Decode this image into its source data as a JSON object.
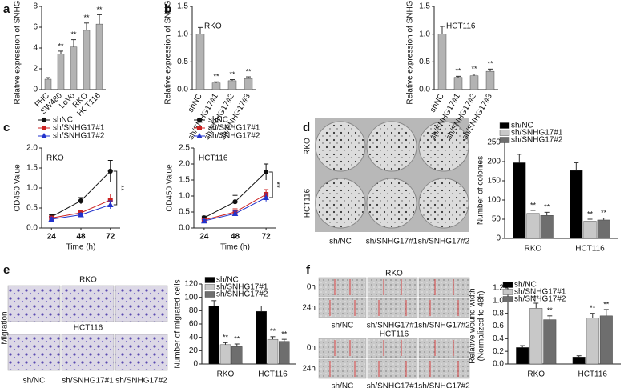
{
  "panel_labels": [
    "a",
    "b",
    "c",
    "d",
    "e",
    "f"
  ],
  "panels": {
    "d": {
      "rows": [
        "RKO",
        "HCT116"
      ],
      "columns": [
        "sh/NC",
        "sh/SNHG17#1",
        "sh/SNHG17#2"
      ]
    },
    "e": {
      "side_label": "Migration",
      "rows": [
        "RKO",
        "HCT116"
      ],
      "columns": [
        "sh/NC",
        "sh/SNHG17#1",
        "sh/SNHG17#2"
      ]
    },
    "f": {
      "groups": [
        "RKO",
        "HCT116"
      ],
      "rows": [
        "0h",
        "24h"
      ],
      "columns": [
        "sh/NC",
        "sh/SNHG17#1",
        "sh/SNHG17#2"
      ]
    }
  },
  "chart_data": [
    {
      "type": "bar",
      "ylabel": "Relative expression of SNHG17",
      "color": "#b3b3b3",
      "categories": [
        "FHC",
        "SW480",
        "LoVo",
        "RKO",
        "HCT116"
      ],
      "values": [
        1.0,
        3.4,
        4.1,
        5.7,
        6.3
      ],
      "errors": [
        0.15,
        0.3,
        0.7,
        0.7,
        0.9
      ],
      "significance": [
        null,
        "**",
        "**",
        "**",
        "**"
      ],
      "ylim": [
        0,
        8
      ],
      "yticks": [
        0,
        2,
        4,
        6,
        8
      ]
    },
    {
      "type": "bar",
      "title": "RKO",
      "ylabel": "Relative expression of SNHG17",
      "color": "#b3b3b3",
      "categories": [
        "shNC",
        "sh/SNHG17#1",
        "sh/SNHG17#2",
        "sh/SNHG17#3"
      ],
      "values": [
        1.0,
        0.12,
        0.16,
        0.2
      ],
      "errors": [
        0.12,
        0.02,
        0.02,
        0.03
      ],
      "significance": [
        null,
        "**",
        "**",
        "**"
      ],
      "ylim": [
        0,
        1.5
      ],
      "yticks": [
        {
          "value": 0,
          "label": "0.0"
        },
        0.5,
        {
          "value": 1,
          "label": "1.0"
        },
        1.5
      ]
    },
    {
      "type": "bar",
      "title": "HCT116",
      "ylabel": "Relative expression of SNHG17",
      "color": "#b3b3b3",
      "categories": [
        "shNC",
        "sh/SNHG17#1",
        "sh/SNHG17#2",
        "sh/SNHG17#3"
      ],
      "values": [
        1.0,
        0.22,
        0.25,
        0.33
      ],
      "errors": [
        0.14,
        0.02,
        0.03,
        0.04
      ],
      "significance": [
        null,
        "**",
        "**",
        "**"
      ],
      "ylim": [
        0,
        1.5
      ],
      "yticks": [
        {
          "value": 0,
          "label": "0.0"
        },
        0.5,
        {
          "value": 1,
          "label": "1.0"
        },
        1.5
      ]
    },
    {
      "type": "line",
      "title": "RKO",
      "ylabel": "OD450 Value",
      "xlabel": "Time (h)",
      "annotation": "**",
      "x": [
        24,
        48,
        72
      ],
      "xlim": [
        16,
        80
      ],
      "xticks": [
        24,
        48,
        72
      ],
      "ylim": [
        0,
        2
      ],
      "yticks": [
        {
          "value": 0,
          "label": "0.0"
        },
        0.5,
        {
          "value": 1,
          "label": "1.0"
        },
        1.5,
        {
          "value": 2,
          "label": "2.0"
        }
      ],
      "series": [
        {
          "name": "shNC",
          "color": "#111111",
          "marker": "circle",
          "values": [
            0.28,
            0.68,
            1.42
          ],
          "errors": [
            0.05,
            0.08,
            0.27
          ]
        },
        {
          "name": "sh/SNHG17#1",
          "color": "#cc2222",
          "marker": "square",
          "values": [
            0.25,
            0.38,
            0.7
          ],
          "errors": [
            0.04,
            0.05,
            0.15
          ]
        },
        {
          "name": "sh/SNHG17#2",
          "color": "#2233cc",
          "marker": "triangle",
          "values": [
            0.22,
            0.33,
            0.58
          ],
          "errors": [
            0.04,
            0.04,
            0.1
          ]
        }
      ]
    },
    {
      "type": "line",
      "title": "HCT116",
      "ylabel": "OD450 Value",
      "xlabel": "Time (h)",
      "annotation": "**",
      "x": [
        24,
        48,
        72
      ],
      "xlim": [
        16,
        80
      ],
      "xticks": [
        24,
        48,
        72
      ],
      "ylim": [
        0,
        2.5
      ],
      "yticks": [
        {
          "value": 0,
          "label": "0.0"
        },
        0.5,
        {
          "value": 1,
          "label": "1.0"
        },
        1.5,
        {
          "value": 2,
          "label": "2.0"
        },
        2.5
      ],
      "series": [
        {
          "name": "shNC",
          "color": "#111111",
          "marker": "circle",
          "values": [
            0.32,
            0.82,
            1.75
          ],
          "errors": [
            0.05,
            0.2,
            0.25
          ]
        },
        {
          "name": "sh/SNHG17#1",
          "color": "#cc2222",
          "marker": "square",
          "values": [
            0.25,
            0.5,
            1.05
          ],
          "errors": [
            0.04,
            0.1,
            0.15
          ]
        },
        {
          "name": "sh/SNHG17#2",
          "color": "#2233cc",
          "marker": "triangle",
          "values": [
            0.22,
            0.45,
            0.95
          ],
          "errors": [
            0.04,
            0.08,
            0.12
          ]
        }
      ]
    },
    {
      "type": "bar",
      "ylabel": "Number of colonies",
      "categories": [
        "RKO",
        "HCT116"
      ],
      "ylim": [
        0,
        250
      ],
      "yticks": [
        0,
        50,
        100,
        150,
        200,
        250
      ],
      "series": [
        {
          "name": "sh/NC",
          "color": "#000000",
          "values": [
            197,
            177
          ],
          "errors": [
            22,
            20
          ],
          "significance": [
            null,
            null
          ]
        },
        {
          "name": "sh/SNHG17#1",
          "color": "#c8c8c8",
          "values": [
            65,
            45
          ],
          "errors": [
            8,
            5
          ],
          "significance": [
            "**",
            "**"
          ]
        },
        {
          "name": "sh/SNHG17#2",
          "color": "#6e6e6e",
          "values": [
            60,
            48
          ],
          "errors": [
            8,
            5
          ],
          "significance": [
            "**",
            "**"
          ]
        }
      ]
    },
    {
      "type": "bar",
      "ylabel": "Number of migrated cells",
      "categories": [
        "RKO",
        "HCT116"
      ],
      "ylim": [
        0,
        120
      ],
      "yticks": [
        0,
        20,
        40,
        60,
        80,
        100,
        120
      ],
      "series": [
        {
          "name": "sh/NC",
          "color": "#000000",
          "values": [
            87,
            79
          ],
          "errors": [
            8,
            8
          ],
          "significance": [
            null,
            null
          ]
        },
        {
          "name": "sh/SNHG17#1",
          "color": "#c8c8c8",
          "values": [
            29,
            37
          ],
          "errors": [
            3,
            4
          ],
          "significance": [
            "**",
            "**"
          ]
        },
        {
          "name": "sh/SNHG17#2",
          "color": "#6e6e6e",
          "values": [
            26,
            34
          ],
          "errors": [
            4,
            3
          ],
          "significance": [
            "**",
            "**"
          ]
        }
      ]
    },
    {
      "type": "bar",
      "ylabel": [
        "Relative wound width",
        "(Normalized to 48h)"
      ],
      "categories": [
        "RKO",
        "HCT116"
      ],
      "ylim": [
        0,
        1.2
      ],
      "yticks": [
        {
          "value": 0,
          "label": "0.0"
        },
        0.2,
        0.4,
        0.6,
        0.8,
        {
          "value": 1,
          "label": "1.0"
        },
        1.2
      ],
      "series": [
        {
          "name": "sh/NC",
          "color": "#000000",
          "values": [
            0.26,
            0.11
          ],
          "errors": [
            0.03,
            0.02
          ],
          "significance": [
            null,
            null
          ]
        },
        {
          "name": "sh/SNHG17#1",
          "color": "#c8c8c8",
          "values": [
            0.88,
            0.73
          ],
          "errors": [
            0.08,
            0.07
          ],
          "significance": [
            "**",
            "**"
          ]
        },
        {
          "name": "sh/SNHG17#2",
          "color": "#6e6e6e",
          "values": [
            0.7,
            0.76
          ],
          "errors": [
            0.06,
            0.1
          ],
          "significance": [
            "**",
            "**"
          ]
        }
      ]
    }
  ]
}
